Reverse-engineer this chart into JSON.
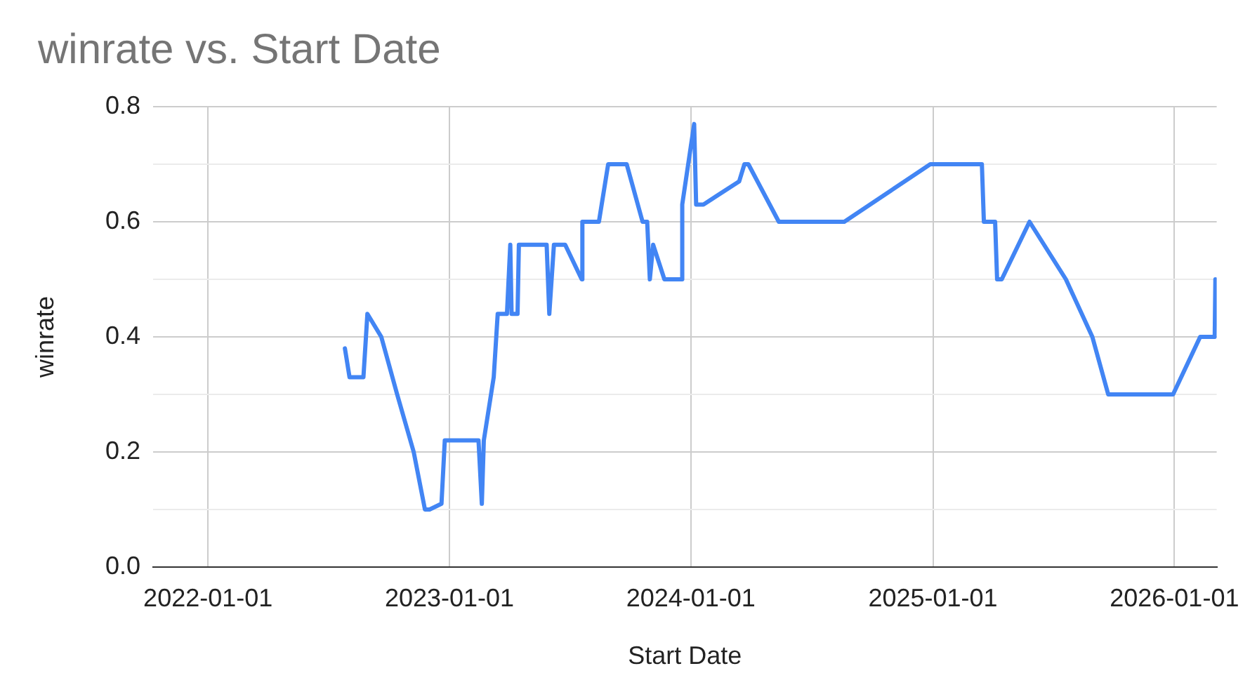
{
  "chart_data": {
    "type": "line",
    "title": "winrate vs. Start Date",
    "xlabel": "Start Date",
    "ylabel": "winrate",
    "x": [
      "2022-07-27",
      "2022-08-03",
      "2022-08-24",
      "2022-08-30",
      "2022-09-20",
      "2022-10-14",
      "2022-11-08",
      "2022-11-25",
      "2022-12-02",
      "2022-12-20",
      "2022-12-25",
      "2023-02-14",
      "2023-02-19",
      "2023-02-22",
      "2023-03-09",
      "2023-03-15",
      "2023-03-29",
      "2023-04-03",
      "2023-04-05",
      "2023-04-14",
      "2023-04-16",
      "2023-05-28",
      "2023-06-01",
      "2023-06-08",
      "2023-06-25",
      "2023-07-20",
      "2023-07-21",
      "2023-08-15",
      "2023-08-29",
      "2023-09-26",
      "2023-10-20",
      "2023-10-27",
      "2023-10-31",
      "2023-11-05",
      "2023-11-22",
      "2023-12-18",
      "2023-12-19",
      "2024-01-06",
      "2024-01-09",
      "2024-01-20",
      "2024-03-14",
      "2024-03-22",
      "2024-03-28",
      "2024-05-13",
      "2024-08-20",
      "2024-12-28",
      "2025-03-16",
      "2025-03-19",
      "2025-04-05",
      "2025-04-08",
      "2025-04-15",
      "2025-05-27",
      "2025-07-21",
      "2025-08-30",
      "2025-09-23",
      "2025-12-30",
      "2026-02-09",
      "2026-03-03",
      "2026-03-04"
    ],
    "series": [
      {
        "color": "#4285f4",
        "values": [
          0.38,
          0.33,
          0.33,
          0.44,
          0.4,
          0.3,
          0.2,
          0.1,
          0.1,
          0.11,
          0.22,
          0.22,
          0.11,
          0.22,
          0.33,
          0.44,
          0.44,
          0.56,
          0.44,
          0.44,
          0.56,
          0.56,
          0.44,
          0.56,
          0.56,
          0.5,
          0.6,
          0.6,
          0.7,
          0.7,
          0.6,
          0.6,
          0.5,
          0.56,
          0.5,
          0.5,
          0.63,
          0.77,
          0.63,
          0.63,
          0.67,
          0.7,
          0.7,
          0.6,
          0.6,
          0.7,
          0.7,
          0.6,
          0.6,
          0.5,
          0.5,
          0.6,
          0.5,
          0.4,
          0.3,
          0.3,
          0.4,
          0.4,
          0.5
        ]
      }
    ],
    "xlim": [
      "2021-10-10",
      "2026-03-06"
    ],
    "xticks": [
      "2022-01-01",
      "2023-01-01",
      "2024-01-01",
      "2025-01-01",
      "2026-01-01"
    ],
    "ylim": [
      0,
      0.8
    ],
    "yticks": [
      {
        "value": 0,
        "label": "0.0"
      },
      {
        "value": 0.1,
        "label": null
      },
      0.2,
      {
        "value": 0.3,
        "label": null
      },
      0.4,
      {
        "value": 0.5,
        "label": null
      },
      0.6,
      {
        "value": 0.7,
        "label": null
      },
      0.8
    ],
    "grid": true,
    "marker": "none"
  }
}
